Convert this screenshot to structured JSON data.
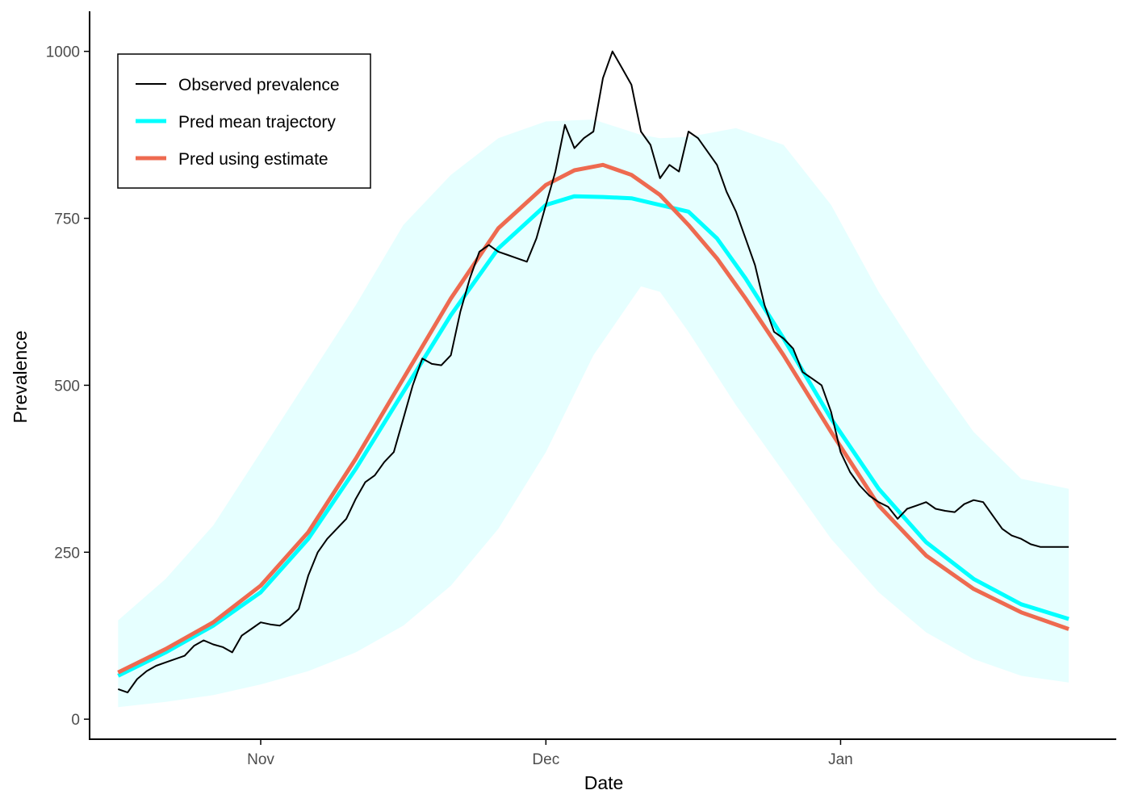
{
  "chart_data": {
    "type": "line",
    "title": "",
    "xlabel": "Date",
    "ylabel": "Prevalence",
    "x_unit": "day index (day 0 = first observation, Nov 1 = day 15)",
    "xlim": [
      -3,
      105
    ],
    "ylim": [
      -30,
      1060
    ],
    "x_ticks": [
      {
        "label": "Nov",
        "day": 15
      },
      {
        "label": "Dec",
        "day": 45
      },
      {
        "label": "Jan",
        "day": 76
      }
    ],
    "y_ticks": [
      0,
      250,
      500,
      750,
      1000
    ],
    "y_tick_labels": [
      "0",
      "250",
      "500",
      "750",
      "1000"
    ],
    "legend": {
      "position": "top-left",
      "entries": [
        {
          "label": "Observed prevalence",
          "color": "#000000"
        },
        {
          "label": "Pred mean trajectory",
          "color": "#00FFFF"
        },
        {
          "label": "Pred using estimate",
          "color": "#EE6A50"
        }
      ]
    },
    "band": {
      "name": "Prediction interval",
      "color": "#E6FFFF",
      "days": [
        0,
        5,
        10,
        15,
        20,
        25,
        30,
        35,
        40,
        45,
        50,
        55,
        57,
        60,
        65,
        70,
        75,
        80,
        85,
        90,
        95,
        100
      ],
      "lower": [
        18,
        26,
        36,
        52,
        72,
        100,
        140,
        200,
        285,
        400,
        545,
        648,
        640,
        580,
        470,
        370,
        270,
        190,
        130,
        90,
        65,
        55
      ],
      "upper": [
        148,
        210,
        290,
        400,
        510,
        620,
        740,
        815,
        870,
        895,
        898,
        875,
        870,
        872,
        885,
        860,
        770,
        640,
        530,
        430,
        360,
        345
      ]
    },
    "series": [
      {
        "name": "Observed prevalence",
        "color": "#000000",
        "x": [
          0,
          1,
          2,
          3,
          4,
          5,
          6,
          7,
          8,
          9,
          10,
          11,
          12,
          13,
          14,
          15,
          16,
          17,
          18,
          19,
          20,
          21,
          22,
          23,
          24,
          25,
          26,
          27,
          28,
          29,
          30,
          31,
          32,
          33,
          34,
          35,
          36,
          37,
          38,
          39,
          40,
          41,
          42,
          43,
          44,
          45,
          46,
          47,
          48,
          49,
          50,
          51,
          52,
          53,
          54,
          55,
          56,
          57,
          58,
          59,
          60,
          61,
          62,
          63,
          64,
          65,
          66,
          67,
          68,
          69,
          70,
          71,
          72,
          73,
          74,
          75,
          76,
          77,
          78,
          79,
          80,
          81,
          82,
          83,
          84,
          85,
          86,
          87,
          88,
          89,
          90,
          91,
          92,
          93,
          94,
          95,
          96,
          97,
          98,
          99,
          100
        ],
        "values": [
          45,
          40,
          60,
          72,
          80,
          85,
          90,
          95,
          110,
          118,
          112,
          108,
          100,
          125,
          135,
          145,
          142,
          140,
          150,
          165,
          215,
          250,
          270,
          285,
          300,
          330,
          355,
          365,
          385,
          400,
          450,
          500,
          540,
          532,
          530,
          545,
          610,
          660,
          700,
          710,
          700,
          695,
          690,
          685,
          720,
          770,
          820,
          890,
          855,
          870,
          880,
          960,
          1000,
          975,
          950,
          880,
          860,
          810,
          830,
          820,
          880,
          870,
          850,
          830,
          790,
          760,
          720,
          680,
          620,
          580,
          570,
          555,
          520,
          510,
          500,
          460,
          400,
          370,
          350,
          335,
          325,
          318,
          300,
          315,
          320,
          325,
          315,
          312,
          310,
          322,
          328,
          325,
          305,
          285,
          275,
          270,
          262,
          258,
          258,
          258,
          258
        ]
      },
      {
        "name": "Pred mean trajectory",
        "color": "#00FFFF",
        "x": [
          0,
          5,
          10,
          15,
          20,
          25,
          30,
          35,
          40,
          45,
          48,
          51,
          54,
          57,
          60,
          63,
          66,
          70,
          75,
          80,
          85,
          90,
          95,
          100
        ],
        "values": [
          65,
          100,
          140,
          190,
          270,
          375,
          490,
          605,
          705,
          770,
          783,
          782,
          780,
          770,
          760,
          720,
          660,
          570,
          450,
          345,
          265,
          210,
          172,
          150
        ]
      },
      {
        "name": "Pred using estimate",
        "color": "#EE6A50",
        "x": [
          0,
          5,
          10,
          15,
          20,
          25,
          30,
          35,
          40,
          45,
          48,
          51,
          54,
          57,
          60,
          63,
          66,
          70,
          75,
          80,
          85,
          90,
          95,
          100
        ],
        "values": [
          70,
          105,
          145,
          200,
          280,
          390,
          510,
          630,
          735,
          800,
          822,
          830,
          815,
          785,
          740,
          690,
          630,
          545,
          430,
          320,
          245,
          195,
          160,
          135
        ]
      }
    ]
  }
}
